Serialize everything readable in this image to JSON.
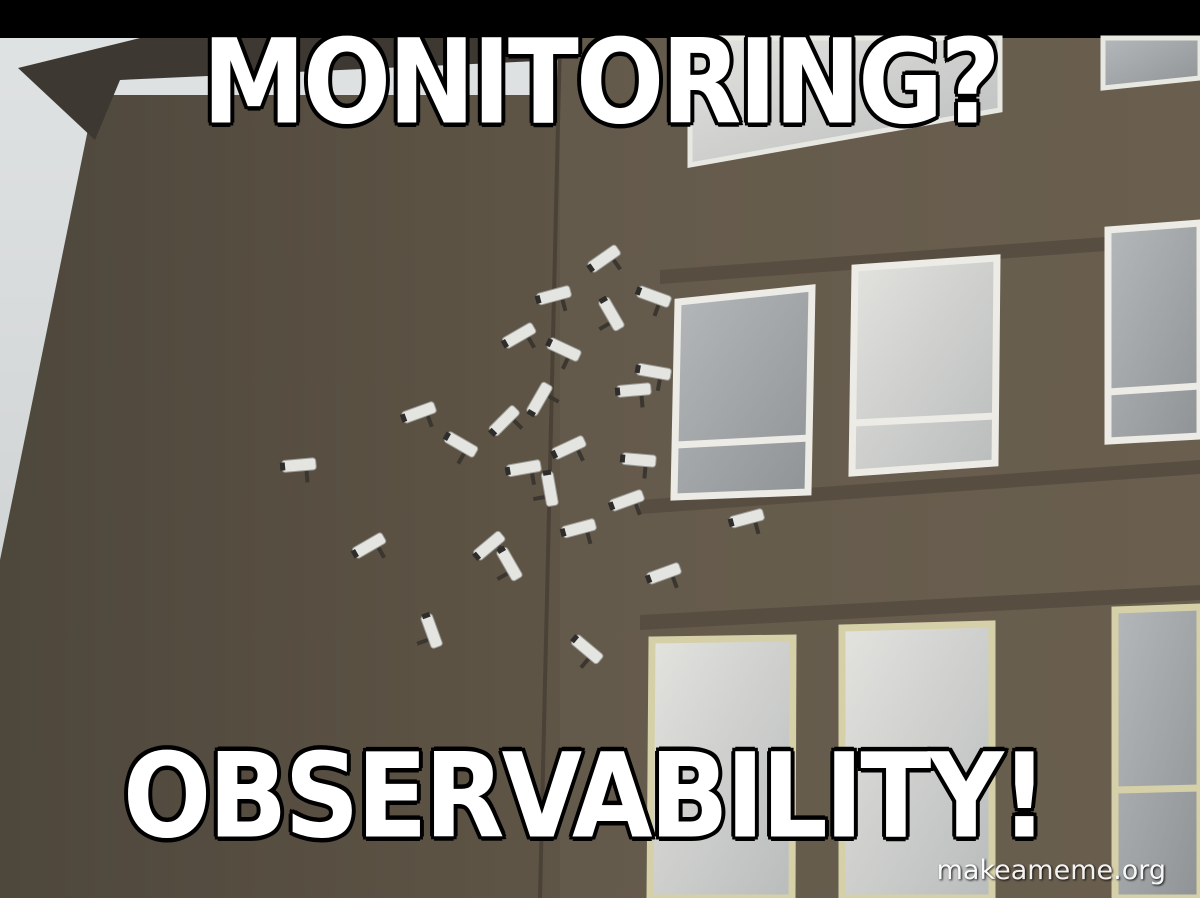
{
  "meme": {
    "top_text": "MONITORING?",
    "bottom_text": "OBSERVABILITY!",
    "watermark": "makeameme.org"
  },
  "colors": {
    "caption_fill": "#ffffff",
    "caption_outline": "#000000",
    "wall": "#5e5446",
    "sky": "#dde0e1"
  }
}
